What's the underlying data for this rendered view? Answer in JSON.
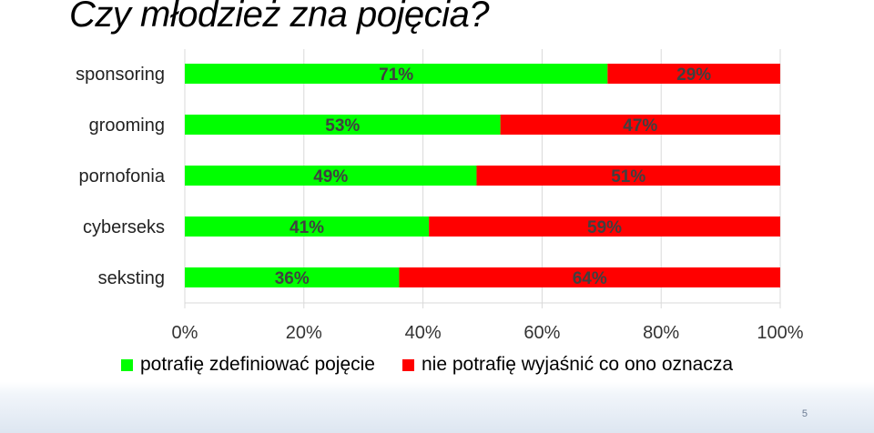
{
  "title": "Czy młodzież zna pojęcia?",
  "page_number": "5",
  "chart_data": {
    "type": "bar",
    "orientation": "horizontal",
    "stacked": "percent",
    "categories": [
      "sponsoring",
      "grooming",
      "pornofonia",
      "cyberseks",
      "seksting"
    ],
    "series": [
      {
        "name": "potrafię zdefiniować pojęcie",
        "color": "#00ff00",
        "values": [
          71,
          53,
          49,
          41,
          36
        ],
        "labels": [
          "71%",
          "53%",
          "49%",
          "41%",
          "36%"
        ]
      },
      {
        "name": "nie potrafię wyjaśnić co ono oznacza",
        "color": "#ff0000",
        "values": [
          29,
          47,
          51,
          59,
          64
        ],
        "labels": [
          "29%",
          "47%",
          "51%",
          "59%",
          "64%"
        ]
      }
    ],
    "xlim": [
      0,
      100
    ],
    "xticks": [
      0,
      20,
      40,
      60,
      80,
      100
    ],
    "xtick_labels": [
      "0%",
      "20%",
      "40%",
      "60%",
      "80%",
      "100%"
    ],
    "grid": true,
    "legend_position": "bottom"
  }
}
